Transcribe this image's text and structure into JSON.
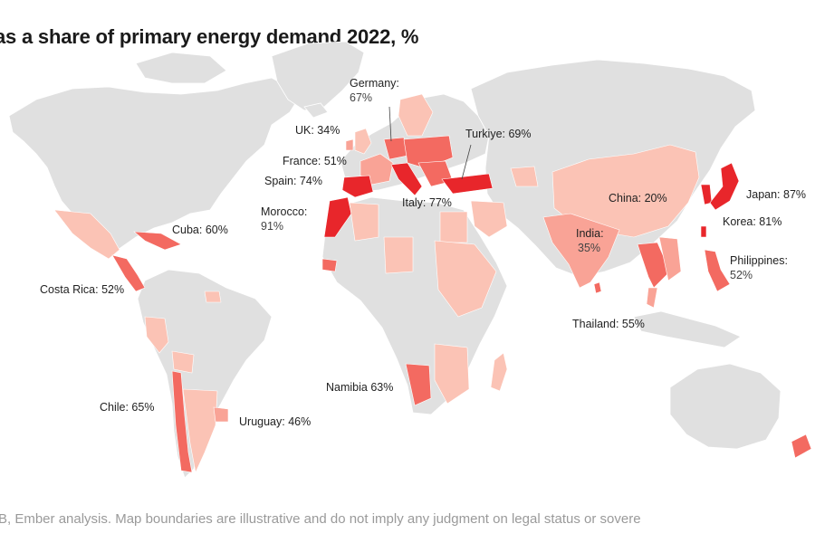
{
  "title": "as a share of primary energy demand 2022, %",
  "footer": "EB, Ember analysis. Map boundaries are illustrative and do not imply any judgment on legal status or sovere",
  "colors": {
    "land": "#e0e0e0",
    "scale_20_35": "#fbc3b5",
    "scale_35_55": "#f9a396",
    "scale_55_70": "#f36a61",
    "scale_70_100": "#e8262b",
    "label_text": "#222222"
  },
  "labels": [
    {
      "id": "germany",
      "line1": "Germany:",
      "line2": "67%"
    },
    {
      "id": "uk",
      "line1": "UK: 34%"
    },
    {
      "id": "france",
      "line1": "France: 51%"
    },
    {
      "id": "spain",
      "line1": "Spain: 74%"
    },
    {
      "id": "morocco",
      "line1": "Morocco:",
      "line2": "91%"
    },
    {
      "id": "italy",
      "line1": "Italy: 77%"
    },
    {
      "id": "turkiye",
      "line1": "Turkiye: 69%"
    },
    {
      "id": "cuba",
      "line1": "Cuba: 60%"
    },
    {
      "id": "costa-rica",
      "line1": "Costa Rica: 52%"
    },
    {
      "id": "chile",
      "line1": "Chile: 65%"
    },
    {
      "id": "uruguay",
      "line1": "Uruguay: 46%"
    },
    {
      "id": "namibia",
      "line1": "Namibia 63%"
    },
    {
      "id": "china",
      "line1": "China: 20%"
    },
    {
      "id": "india",
      "line1": "India:",
      "line2": "35%"
    },
    {
      "id": "thailand",
      "line1": "Thailand: 55%"
    },
    {
      "id": "japan",
      "line1": "Japan: 87%"
    },
    {
      "id": "korea",
      "line1": "Korea: 81%"
    },
    {
      "id": "philippines",
      "line1": "Philippines:",
      "line2": "52%"
    }
  ]
}
